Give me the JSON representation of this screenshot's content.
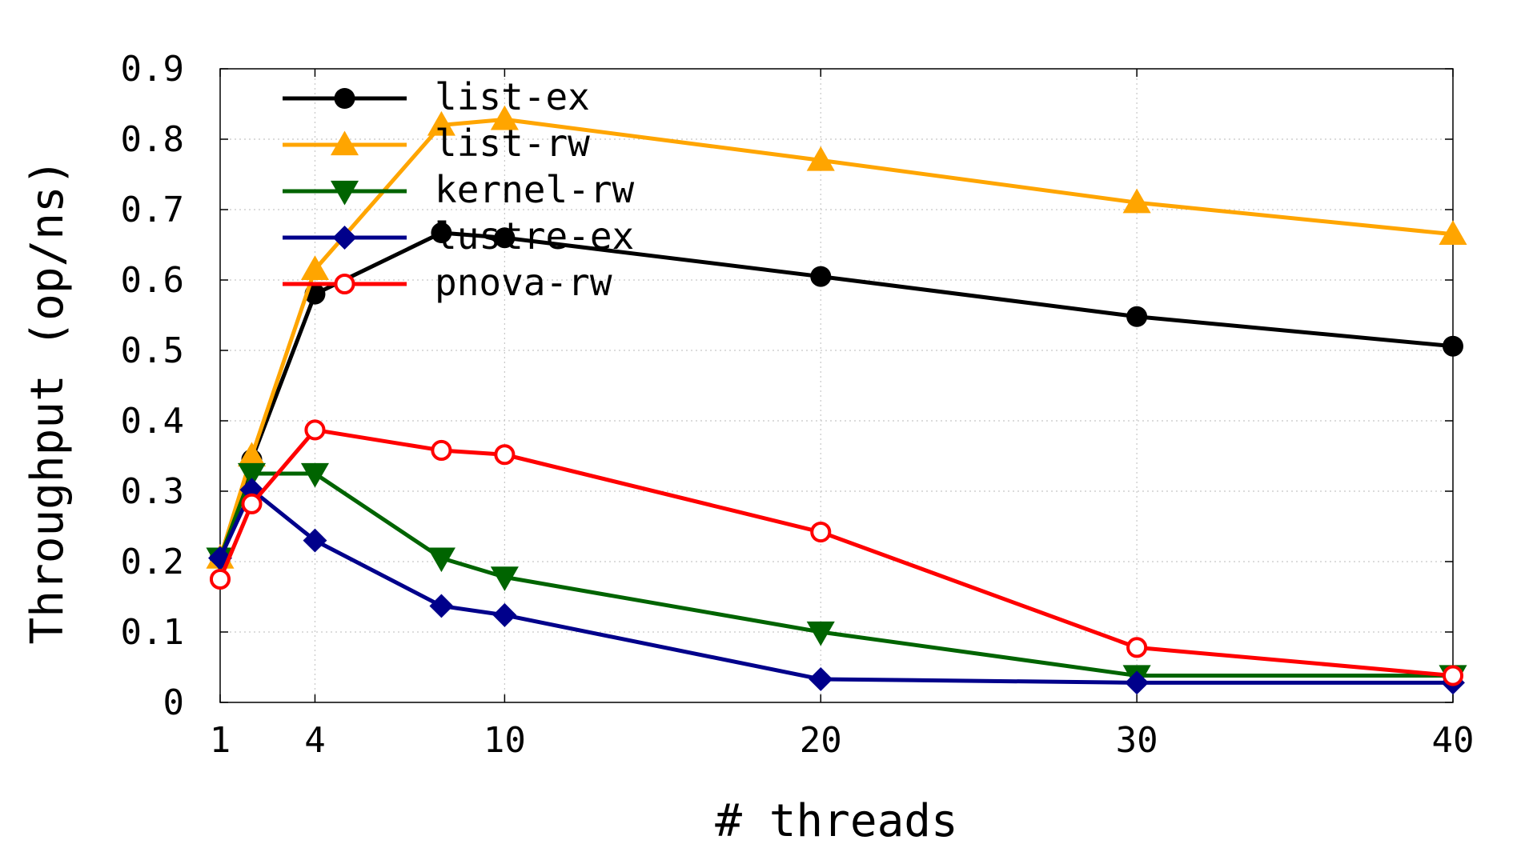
{
  "chart_data": {
    "type": "line",
    "title": "",
    "xlabel": "# threads",
    "ylabel": "Throughput (op/ns)",
    "xlim": [
      1,
      40
    ],
    "ylim": [
      0,
      0.9
    ],
    "x_ticks": [
      1,
      4,
      10,
      20,
      30,
      40
    ],
    "x_tick_labels": [
      "1",
      "4",
      "10",
      "20",
      "30",
      "40"
    ],
    "y_ticks": [
      0,
      0.1,
      0.2,
      0.3,
      0.4,
      0.5,
      0.6,
      0.7,
      0.8,
      0.9
    ],
    "y_tick_labels": [
      "0",
      "0.1",
      "0.2",
      "0.3",
      "0.4",
      "0.5",
      "0.6",
      "0.7",
      "0.8",
      "0.9"
    ],
    "grid": true,
    "legend_position": "top-left",
    "series": [
      {
        "name": "list-ex",
        "color": "#000000",
        "marker": "filled-circle",
        "points": [
          [
            1,
            0.205
          ],
          [
            2,
            0.345
          ],
          [
            4,
            0.58
          ],
          [
            8,
            0.667
          ],
          [
            10,
            0.66
          ],
          [
            20,
            0.605
          ],
          [
            30,
            0.548
          ],
          [
            40,
            0.506
          ]
        ]
      },
      {
        "name": "list-rw",
        "color": "#ffa500",
        "marker": "filled-triangle-up",
        "points": [
          [
            1,
            0.205
          ],
          [
            2,
            0.35
          ],
          [
            4,
            0.615
          ],
          [
            8,
            0.82
          ],
          [
            10,
            0.828
          ],
          [
            20,
            0.77
          ],
          [
            30,
            0.71
          ],
          [
            40,
            0.665
          ]
        ]
      },
      {
        "name": "kernel-rw",
        "color": "#006400",
        "marker": "filled-triangle-down",
        "points": [
          [
            1,
            0.205
          ],
          [
            2,
            0.325
          ],
          [
            4,
            0.325
          ],
          [
            8,
            0.205
          ],
          [
            10,
            0.178
          ],
          [
            20,
            0.1
          ],
          [
            30,
            0.038
          ],
          [
            40,
            0.038
          ]
        ]
      },
      {
        "name": "lustre-ex",
        "color": "#00008b",
        "marker": "filled-diamond",
        "points": [
          [
            1,
            0.205
          ],
          [
            2,
            0.302
          ],
          [
            4,
            0.23
          ],
          [
            8,
            0.137
          ],
          [
            10,
            0.124
          ],
          [
            20,
            0.033
          ],
          [
            30,
            0.028
          ],
          [
            40,
            0.028
          ]
        ]
      },
      {
        "name": "pnova-rw",
        "color": "#ff0000",
        "marker": "open-circle",
        "points": [
          [
            1,
            0.175
          ],
          [
            2,
            0.282
          ],
          [
            4,
            0.387
          ],
          [
            8,
            0.358
          ],
          [
            10,
            0.352
          ],
          [
            20,
            0.242
          ],
          [
            30,
            0.078
          ],
          [
            40,
            0.038
          ]
        ]
      }
    ]
  }
}
